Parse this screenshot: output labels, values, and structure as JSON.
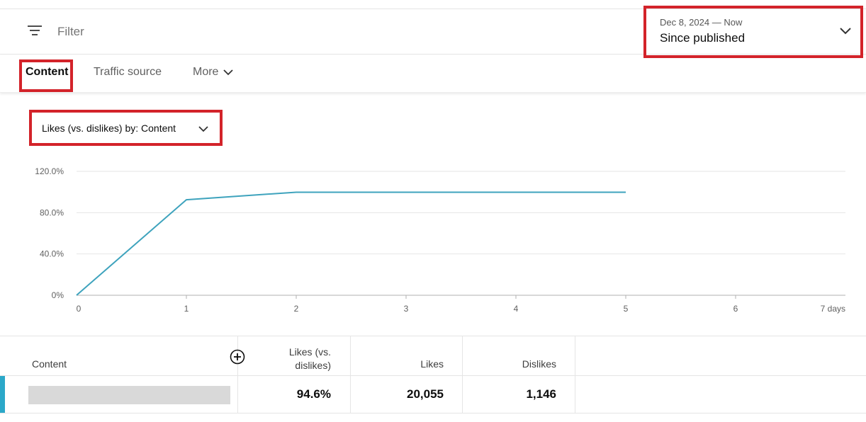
{
  "filter": {
    "placeholder": "Filter"
  },
  "date_range": {
    "range": "Dec 8, 2024 — Now",
    "period": "Since published"
  },
  "tabs": [
    {
      "label": "Content",
      "active": true
    },
    {
      "label": "Traffic source",
      "active": false
    },
    {
      "label": "More",
      "active": false
    }
  ],
  "metric_selector": {
    "label": "Likes (vs. dislikes) by: Content"
  },
  "chart_data": {
    "type": "line",
    "x": [
      0,
      1,
      2,
      3,
      4,
      5
    ],
    "x_ticks": [
      "0",
      "1",
      "2",
      "3",
      "4",
      "5",
      "6",
      "7 days"
    ],
    "xlim": [
      0,
      7
    ],
    "y_ticks": [
      "0%",
      "40.0%",
      "80.0%",
      "120.0%"
    ],
    "ylim": [
      0,
      120
    ],
    "series": [
      {
        "values": [
          0,
          92.5,
          99.8,
          99.8,
          99.8,
          99.8
        ],
        "color": "#3ea3bd"
      }
    ],
    "grid": true
  },
  "table": {
    "headers": {
      "content": "Content",
      "likes_vs_dislikes_1": "Likes (vs.",
      "likes_vs_dislikes_2": "dislikes)",
      "likes": "Likes",
      "dislikes": "Dislikes"
    },
    "rows": [
      {
        "likes_vs_dislikes": "94.6%",
        "likes": "20,055",
        "dislikes": "1,146"
      }
    ]
  },
  "colors": {
    "highlight": "#d3232a",
    "series": "#3ea3bd",
    "row_accent": "#2ba8c9"
  }
}
